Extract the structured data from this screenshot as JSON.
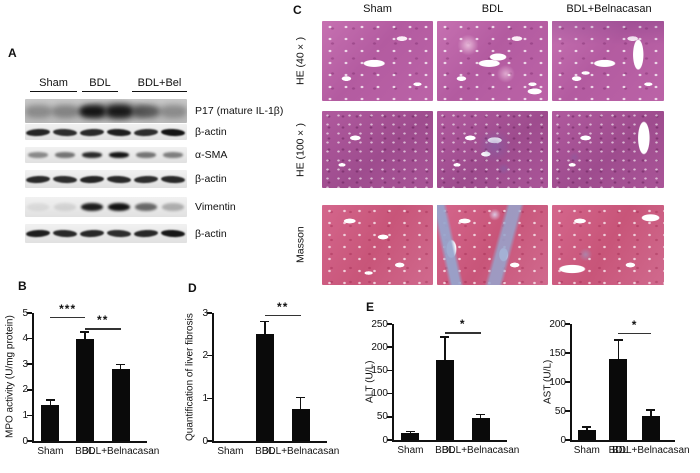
{
  "panels": {
    "a": "A",
    "b": "B",
    "c": "C",
    "d": "D",
    "e": "E"
  },
  "panel_a": {
    "groups": [
      {
        "label": "Sham"
      },
      {
        "label": "BDL"
      },
      {
        "label": "BDL+Bel"
      }
    ],
    "rows": [
      {
        "label": "P17 (mature IL-1β)",
        "style": "smear",
        "lanes": [
          0.3,
          0.35,
          1.0,
          0.95,
          0.55,
          0.3
        ]
      },
      {
        "label": "β-actin",
        "style": "actin",
        "lanes": [
          0.92,
          0.88,
          0.9,
          0.95,
          0.88,
          1.0
        ]
      },
      {
        "label": "α-SMA",
        "style": "thin",
        "lanes": [
          0.45,
          0.55,
          0.9,
          1.0,
          0.55,
          0.5
        ]
      },
      {
        "label": "β-actin",
        "style": "actin",
        "lanes": [
          0.9,
          0.88,
          0.92,
          0.9,
          0.88,
          0.9
        ]
      },
      {
        "label": "Vimentin",
        "style": "mid",
        "lanes": [
          0.07,
          0.1,
          0.95,
          1.0,
          0.6,
          0.28
        ]
      },
      {
        "label": "β-actin",
        "style": "actin",
        "lanes": [
          0.95,
          0.9,
          0.9,
          0.88,
          0.9,
          0.98
        ]
      }
    ]
  },
  "panel_c": {
    "columns": [
      "Sham",
      "BDL",
      "BDL+Belnacasan"
    ],
    "rows": [
      "HE (40×)",
      "HE (100×)",
      "Masson"
    ],
    "stain_colors": {
      "he_base": "#b85fa3",
      "he100_base": "#a34f92",
      "masson_base": "#cd5d84",
      "collagen_blue": "#96a5cd"
    }
  },
  "chart_data": [
    {
      "id": "chart-mpo",
      "panel": "B",
      "type": "bar",
      "categories": [
        "Sham",
        "BDL",
        "BDL+Belnacasan"
      ],
      "values": [
        1.4,
        4.0,
        2.8
      ],
      "errors": [
        0.2,
        0.25,
        0.18
      ],
      "title": "",
      "xlabel": "",
      "ylabel": "MPO activity (U/mg protein)",
      "ylim": [
        0,
        5
      ],
      "yticks": [
        0,
        1,
        2,
        3,
        4,
        5
      ],
      "grid": false,
      "legend": "none",
      "significance": [
        {
          "from": 0,
          "to": 1,
          "label": "***",
          "y": 4.85
        },
        {
          "from": 1,
          "to": 2,
          "label": "**",
          "y": 4.4
        }
      ]
    },
    {
      "id": "chart-fibrosis",
      "panel": "D",
      "type": "bar",
      "categories": [
        "Sham",
        "BDL",
        "BDL+Belnacasan"
      ],
      "values": [
        0,
        2.5,
        0.75
      ],
      "errors": [
        0,
        0.3,
        0.27
      ],
      "title": "",
      "xlabel": "",
      "ylabel": "Quantification of liver fibrosis",
      "ylim": [
        0,
        3
      ],
      "yticks": [
        0,
        1,
        2,
        3
      ],
      "grid": false,
      "legend": "none",
      "significance": [
        {
          "from": 1,
          "to": 2,
          "label": "**",
          "y": 2.95
        }
      ]
    },
    {
      "id": "chart-alt",
      "panel": "E",
      "type": "bar",
      "categories": [
        "Sham",
        "BDL",
        "BDL+Belnacasan"
      ],
      "values": [
        15,
        172,
        47
      ],
      "errors": [
        3,
        50,
        8
      ],
      "title": "",
      "xlabel": "",
      "ylabel": "ALT (U/L)",
      "ylim": [
        0,
        250
      ],
      "yticks": [
        0,
        50,
        100,
        150,
        200,
        250
      ],
      "grid": false,
      "legend": "none",
      "significance": [
        {
          "from": 1,
          "to": 2,
          "label": "*",
          "y": 232
        }
      ]
    },
    {
      "id": "chart-ast",
      "panel": "E",
      "type": "bar",
      "categories": [
        "Sham",
        "BDL",
        "BDL+Belnacasan"
      ],
      "values": [
        18,
        140,
        42
      ],
      "errors": [
        4,
        32,
        10
      ],
      "title": "",
      "xlabel": "",
      "ylabel": "AST (U/L)",
      "ylim": [
        0,
        200
      ],
      "yticks": [
        0,
        50,
        100,
        150,
        200
      ],
      "grid": false,
      "legend": "none",
      "significance": [
        {
          "from": 1,
          "to": 2,
          "label": "*",
          "y": 185
        }
      ]
    }
  ]
}
